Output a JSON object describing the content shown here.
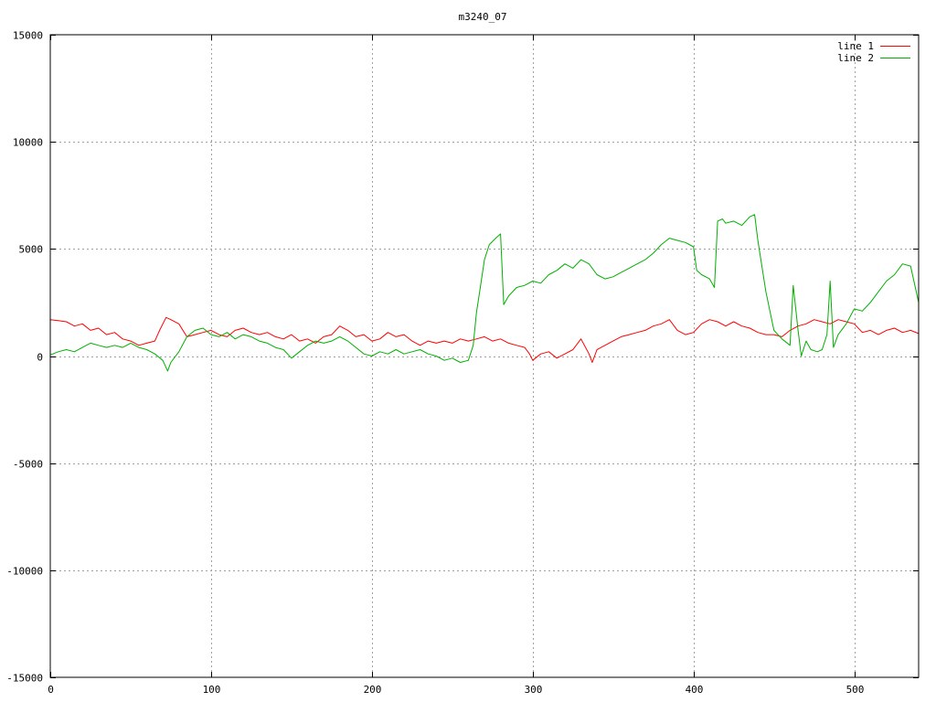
{
  "chart_data": {
    "type": "line",
    "title": "m3240_07",
    "xlabel": "",
    "ylabel": "",
    "xlim": [
      0,
      540
    ],
    "ylim": [
      -15000,
      15000
    ],
    "x_ticks": [
      0,
      100,
      200,
      300,
      400,
      500
    ],
    "y_ticks": [
      -15000,
      -10000,
      -5000,
      0,
      5000,
      10000,
      15000
    ],
    "grid": true,
    "legend_position": "top-right",
    "series": [
      {
        "name": "line 1",
        "color": "#ff0000",
        "x": [
          0,
          5,
          10,
          15,
          20,
          25,
          30,
          35,
          40,
          45,
          50,
          55,
          60,
          65,
          68,
          72,
          75,
          80,
          85,
          90,
          95,
          100,
          105,
          110,
          115,
          120,
          125,
          130,
          135,
          140,
          145,
          150,
          155,
          160,
          165,
          170,
          175,
          180,
          185,
          190,
          195,
          200,
          205,
          210,
          215,
          220,
          225,
          230,
          235,
          240,
          245,
          250,
          255,
          260,
          265,
          270,
          275,
          280,
          285,
          290,
          295,
          298,
          300,
          305,
          310,
          315,
          320,
          325,
          330,
          335,
          337,
          340,
          345,
          350,
          355,
          360,
          365,
          370,
          375,
          380,
          385,
          390,
          395,
          400,
          405,
          410,
          415,
          420,
          425,
          430,
          435,
          440,
          445,
          450,
          455,
          460,
          465,
          470,
          475,
          480,
          485,
          490,
          495,
          500,
          505,
          510,
          515,
          520,
          525,
          530,
          535,
          540
        ],
        "y": [
          1700,
          1650,
          1600,
          1400,
          1500,
          1200,
          1300,
          1000,
          1100,
          800,
          700,
          500,
          600,
          700,
          1200,
          1800,
          1700,
          1500,
          900,
          1000,
          1100,
          1200,
          1000,
          900,
          1200,
          1300,
          1100,
          1000,
          1100,
          900,
          800,
          1000,
          700,
          800,
          600,
          900,
          1000,
          1400,
          1200,
          900,
          1000,
          700,
          800,
          1100,
          900,
          1000,
          700,
          500,
          700,
          600,
          700,
          600,
          800,
          700,
          800,
          900,
          700,
          800,
          600,
          500,
          400,
          100,
          -200,
          100,
          200,
          -100,
          100,
          300,
          800,
          100,
          -300,
          300,
          500,
          700,
          900,
          1000,
          1100,
          1200,
          1400,
          1500,
          1700,
          1200,
          1000,
          1100,
          1500,
          1700,
          1600,
          1400,
          1600,
          1400,
          1300,
          1100,
          1000,
          1000,
          900,
          1200,
          1400,
          1500,
          1700,
          1600,
          1500,
          1700,
          1600,
          1500,
          1100,
          1200,
          1000,
          1200,
          1300,
          1100,
          1200,
          1050
        ]
      },
      {
        "name": "line 2",
        "color": "#00b000",
        "x": [
          0,
          5,
          10,
          15,
          20,
          25,
          30,
          35,
          40,
          45,
          50,
          55,
          60,
          65,
          70,
          73,
          75,
          80,
          85,
          90,
          95,
          100,
          105,
          110,
          115,
          120,
          125,
          130,
          135,
          140,
          145,
          150,
          155,
          160,
          165,
          170,
          175,
          180,
          185,
          190,
          195,
          200,
          205,
          210,
          215,
          220,
          225,
          230,
          235,
          240,
          245,
          250,
          255,
          260,
          263,
          265,
          268,
          270,
          273,
          277,
          280,
          282,
          285,
          290,
          295,
          300,
          305,
          310,
          315,
          320,
          325,
          330,
          335,
          340,
          345,
          350,
          355,
          360,
          365,
          370,
          375,
          380,
          385,
          390,
          395,
          400,
          402,
          405,
          410,
          413,
          415,
          418,
          420,
          425,
          430,
          435,
          438,
          440,
          445,
          450,
          455,
          460,
          462,
          465,
          467,
          470,
          473,
          477,
          480,
          483,
          485,
          487,
          490,
          495,
          500,
          505,
          510,
          515,
          520,
          525,
          530,
          535,
          540
        ],
        "y": [
          50,
          200,
          300,
          200,
          400,
          600,
          500,
          400,
          500,
          400,
          600,
          400,
          300,
          100,
          -200,
          -700,
          -300,
          200,
          900,
          1200,
          1300,
          1000,
          900,
          1100,
          800,
          1000,
          900,
          700,
          600,
          400,
          300,
          -100,
          200,
          500,
          700,
          600,
          700,
          900,
          700,
          400,
          100,
          0,
          200,
          100,
          300,
          100,
          200,
          300,
          100,
          0,
          -200,
          -100,
          -300,
          -200,
          500,
          2000,
          3500,
          4500,
          5200,
          5500,
          5700,
          2400,
          2800,
          3200,
          3300,
          3500,
          3400,
          3800,
          4000,
          4300,
          4100,
          4500,
          4300,
          3800,
          3600,
          3700,
          3900,
          4100,
          4300,
          4500,
          4800,
          5200,
          5500,
          5400,
          5300,
          5100,
          4000,
          3800,
          3600,
          3200,
          6300,
          6400,
          6200,
          6300,
          6100,
          6500,
          6600,
          5400,
          3000,
          1200,
          800,
          500,
          3300,
          1200,
          0,
          700,
          300,
          200,
          300,
          1000,
          3500,
          400,
          1000,
          1500,
          2200,
          2100,
          2500,
          3000,
          3500,
          3800,
          4300,
          4200,
          2500
        ]
      }
    ]
  }
}
